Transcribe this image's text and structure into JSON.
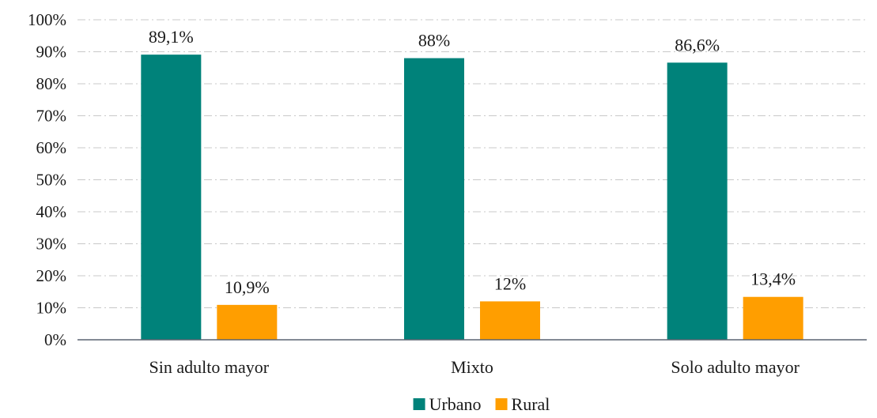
{
  "chart_data": {
    "type": "bar",
    "categories": [
      "Sin adulto mayor",
      "Mixto",
      "Solo adulto mayor"
    ],
    "series": [
      {
        "name": "Urbano",
        "values": [
          89.1,
          88,
          86.6
        ],
        "labels": [
          "89,1%",
          "88%",
          "86,6%"
        ],
        "color": "#00827A"
      },
      {
        "name": "Rural",
        "values": [
          10.9,
          12,
          13.4
        ],
        "labels": [
          "10,9%",
          "12%",
          "13,4%"
        ],
        "color": "#FF9E00"
      }
    ],
    "ylim": [
      0,
      100
    ],
    "yticks": [
      "0%",
      "10%",
      "20%",
      "30%",
      "40%",
      "50%",
      "60%",
      "70%",
      "80%",
      "90%",
      "100%"
    ],
    "grid": true,
    "legend_position": "bottom"
  }
}
